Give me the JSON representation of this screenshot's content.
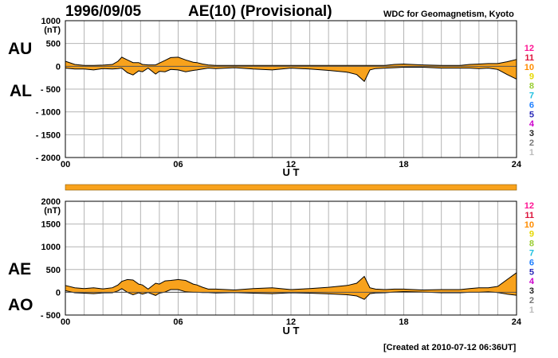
{
  "header": {
    "date": "1996/09/05",
    "index_title": "AE(10) (Provisional)",
    "source": "WDC for Geomagnetism, Kyoto"
  },
  "footer": {
    "created": "[Created at 2010-07-12 06:36UT]"
  },
  "colors": {
    "fill": "#f8a21c",
    "line": "#000000",
    "grid": "#b4b4b4"
  },
  "legend": {
    "numbers": [
      "12",
      "11",
      "10",
      "9",
      "8",
      "7",
      "6",
      "5",
      "4",
      "3",
      "2",
      "1"
    ],
    "colors": [
      "#ff1493",
      "#dc143c",
      "#ff8c00",
      "#e6d800",
      "#9acd32",
      "#20c0e0",
      "#1e7fff",
      "#2a2ab8",
      "#cc00cc",
      "#222222",
      "#777777",
      "#bbbbbb"
    ]
  },
  "separator_bar": {
    "level": 1.0
  },
  "chart_data": [
    {
      "type": "area",
      "panel": "top",
      "left_labels": [
        "AU",
        "AL"
      ],
      "y_unit": "(nT)",
      "ylim": [
        -2000,
        1000
      ],
      "yticks": [
        1000,
        500,
        0,
        -500,
        -1000,
        -1500,
        -2000
      ],
      "ytick_labels": [
        "1000",
        "500",
        "0",
        "- 500",
        "- 1000",
        "- 1500",
        "- 2000"
      ],
      "xlim": [
        0,
        24
      ],
      "xticks": [
        0,
        6,
        12,
        18,
        24
      ],
      "xtick_labels": [
        "00",
        "06",
        "12",
        "18",
        "24"
      ],
      "xlabel": "U T",
      "grid": true,
      "x": [
        0,
        0.5,
        1,
        1.5,
        2,
        2.5,
        2.8,
        3,
        3.3,
        3.6,
        3.9,
        4.1,
        4.4,
        4.8,
        5,
        5.3,
        5.6,
        6,
        6.4,
        6.8,
        7,
        7.3,
        7.6,
        8,
        9,
        10,
        11,
        12,
        13,
        14,
        15,
        15.5,
        15.9,
        16.2,
        16.5,
        17,
        17.5,
        18,
        19,
        20,
        21,
        21.5,
        22,
        22.5,
        23,
        23.5,
        24
      ],
      "series": [
        {
          "name": "AU",
          "values": [
            110,
            40,
            20,
            20,
            25,
            40,
            110,
            200,
            140,
            80,
            80,
            40,
            30,
            30,
            70,
            130,
            190,
            200,
            140,
            90,
            80,
            50,
            30,
            20,
            20,
            20,
            20,
            20,
            20,
            20,
            20,
            20,
            20,
            20,
            20,
            20,
            40,
            50,
            30,
            20,
            20,
            40,
            50,
            60,
            60,
            100,
            150
          ]
        },
        {
          "name": "AL",
          "values": [
            -40,
            -60,
            -60,
            -80,
            -50,
            -60,
            -50,
            -40,
            -140,
            -190,
            -100,
            -120,
            -40,
            -170,
            -110,
            -120,
            -70,
            -80,
            -120,
            -90,
            -80,
            -60,
            -40,
            -50,
            -30,
            -60,
            -80,
            -40,
            -60,
            -90,
            -130,
            -180,
            -330,
            -80,
            -50,
            -40,
            -30,
            -20,
            -20,
            -40,
            -40,
            -40,
            -50,
            -40,
            -70,
            -180,
            -280
          ]
        }
      ]
    },
    {
      "type": "area",
      "panel": "bottom",
      "left_labels": [
        "AE",
        "AO"
      ],
      "y_unit": "(nT)",
      "ylim": [
        -500,
        2000
      ],
      "yticks": [
        2000,
        1500,
        1000,
        500,
        0,
        -500
      ],
      "ytick_labels": [
        "2000",
        "1500",
        "1000",
        "500",
        "0",
        "- 500"
      ],
      "xlim": [
        0,
        24
      ],
      "xticks": [
        0,
        6,
        12,
        18,
        24
      ],
      "xtick_labels": [
        "00",
        "06",
        "12",
        "18",
        "24"
      ],
      "xlabel": "U T",
      "grid": true,
      "x": [
        0,
        0.5,
        1,
        1.5,
        2,
        2.5,
        2.8,
        3,
        3.3,
        3.6,
        3.9,
        4.1,
        4.4,
        4.8,
        5,
        5.3,
        5.6,
        6,
        6.4,
        6.8,
        7,
        7.3,
        7.6,
        8,
        9,
        10,
        11,
        12,
        13,
        14,
        15,
        15.5,
        15.9,
        16.2,
        16.5,
        17,
        17.5,
        18,
        19,
        20,
        21,
        21.5,
        22,
        22.5,
        23,
        23.5,
        24
      ],
      "series": [
        {
          "name": "AE",
          "values": [
            150,
            100,
            80,
            100,
            75,
            100,
            160,
            240,
            280,
            270,
            180,
            160,
            70,
            200,
            180,
            250,
            260,
            280,
            260,
            180,
            160,
            110,
            70,
            70,
            50,
            80,
            100,
            60,
            80,
            110,
            150,
            200,
            350,
            100,
            70,
            60,
            70,
            70,
            50,
            60,
            60,
            80,
            100,
            100,
            130,
            280,
            430
          ]
        },
        {
          "name": "AO",
          "values": [
            35,
            -10,
            -20,
            -30,
            -12,
            -10,
            30,
            80,
            0,
            -55,
            -10,
            -40,
            -5,
            -70,
            -20,
            5,
            60,
            60,
            10,
            0,
            0,
            -5,
            -5,
            -15,
            -5,
            -20,
            -30,
            -10,
            -20,
            -35,
            -55,
            -80,
            -155,
            -30,
            -15,
            -10,
            5,
            15,
            5,
            -10,
            -10,
            0,
            0,
            10,
            -5,
            -40,
            -65
          ]
        }
      ]
    }
  ]
}
